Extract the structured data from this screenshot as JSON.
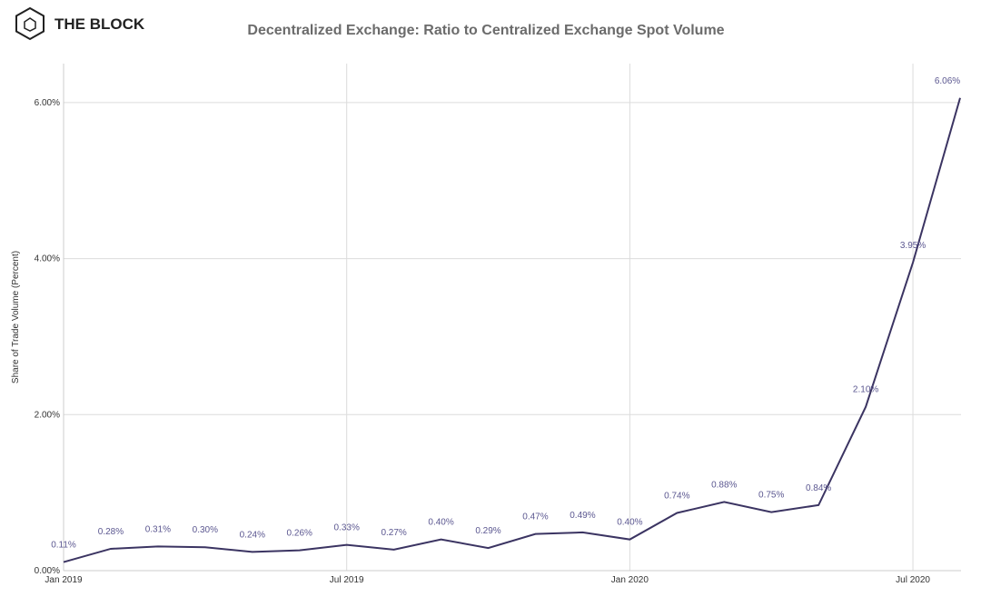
{
  "brand": "THE BLOCK",
  "chart_data": {
    "type": "line",
    "title": "Decentralized Exchange: Ratio to Centralized Exchange Spot Volume",
    "y_label": "Share of Trade Volume (Percent)",
    "categories": [
      "Jan 2019",
      null,
      null,
      null,
      null,
      null,
      "Jul 2019",
      null,
      null,
      null,
      null,
      null,
      "Jan 2020",
      null,
      null,
      null,
      null,
      null,
      "Jul 2020",
      null
    ],
    "series": [
      {
        "name": "Share of Trade Volume",
        "color": "#3b3462",
        "values": [
          0.11,
          0.28,
          0.31,
          0.3,
          0.24,
          0.26,
          0.33,
          0.27,
          0.4,
          0.29,
          0.47,
          0.49,
          0.4,
          0.74,
          0.88,
          0.75,
          0.84,
          2.1,
          3.95,
          6.06
        ],
        "value_labels": [
          "0.11%",
          "0.28%",
          "0.31%",
          "0.30%",
          "0.24%",
          "0.26%",
          "0.33%",
          "0.27%",
          "0.40%",
          "0.29%",
          "0.47%",
          "0.49%",
          "0.40%",
          "0.74%",
          "0.88%",
          "0.75%",
          "0.84%",
          "2.10%",
          "3.95%",
          "6.06%"
        ]
      }
    ],
    "ylim": [
      0,
      6.5
    ],
    "yticks": [
      {
        "value": 0,
        "label": "0.00%"
      },
      {
        "value": 2,
        "label": "2.00%"
      },
      {
        "value": 4,
        "label": "4.00%"
      },
      {
        "value": 6,
        "label": "6.00%"
      }
    ],
    "grid": true
  }
}
